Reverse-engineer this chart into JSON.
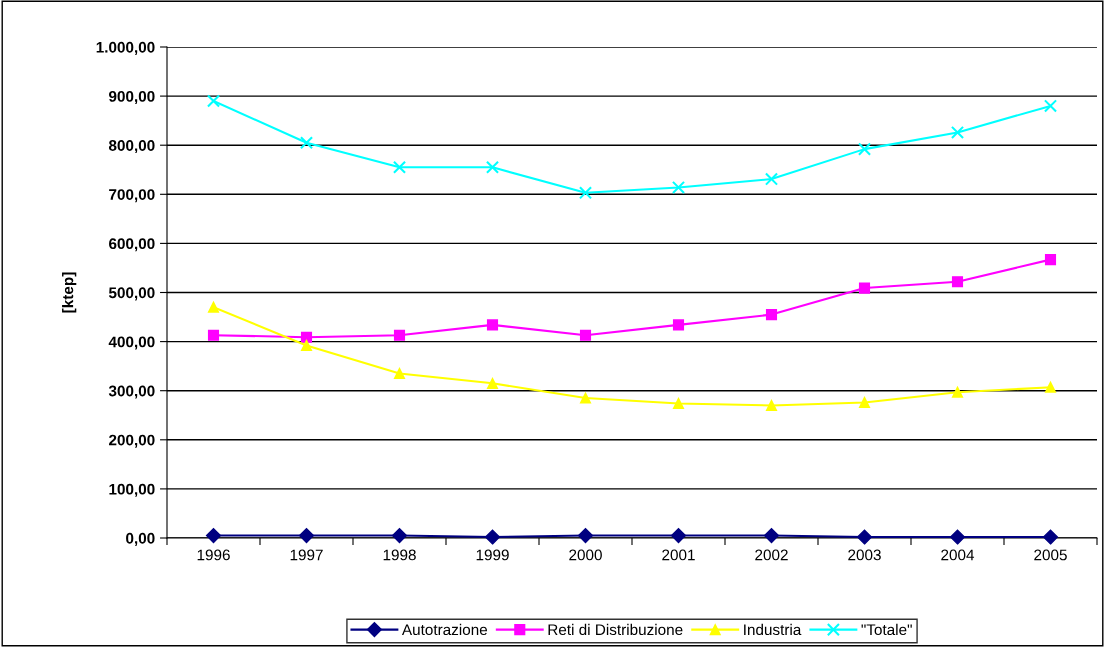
{
  "chart_data": {
    "type": "line",
    "ylabel": "[ktep]",
    "categories": [
      "1996",
      "1997",
      "1998",
      "1999",
      "2000",
      "2001",
      "2002",
      "2003",
      "2004",
      "2005"
    ],
    "series": [
      {
        "name": "Autotrazione",
        "color": "#000080",
        "marker": "diamond",
        "values": [
          5,
          5,
          5,
          2,
          5,
          5,
          5,
          2,
          2,
          2
        ]
      },
      {
        "name": "Reti di Distribuzione",
        "color": "#ff00ff",
        "marker": "square",
        "values": [
          413,
          409,
          413,
          434,
          413,
          434,
          455,
          509,
          522,
          567
        ]
      },
      {
        "name": "Industria",
        "color": "#ffff00",
        "marker": "triangle",
        "values": [
          470,
          392,
          335,
          315,
          285,
          274,
          270,
          276,
          297,
          307
        ]
      },
      {
        "name": "\"Totale\"",
        "color": "#00ffff",
        "marker": "cross",
        "values": [
          890,
          805,
          755,
          755,
          703,
          714,
          731,
          792,
          826,
          880
        ]
      }
    ],
    "ylim": [
      0,
      1000
    ],
    "yticks": [
      {
        "value": 0,
        "label": "0,00"
      },
      {
        "value": 100,
        "label": "100,00"
      },
      {
        "value": 200,
        "label": "200,00"
      },
      {
        "value": 300,
        "label": "300,00"
      },
      {
        "value": 400,
        "label": "400,00"
      },
      {
        "value": 500,
        "label": "500,00"
      },
      {
        "value": 600,
        "label": "600,00"
      },
      {
        "value": 700,
        "label": "700,00"
      },
      {
        "value": 800,
        "label": "800,00"
      },
      {
        "value": 900,
        "label": "900,00"
      },
      {
        "value": 1000,
        "label": "1.000,00"
      }
    ],
    "grid": "y",
    "legend": "bottom"
  }
}
